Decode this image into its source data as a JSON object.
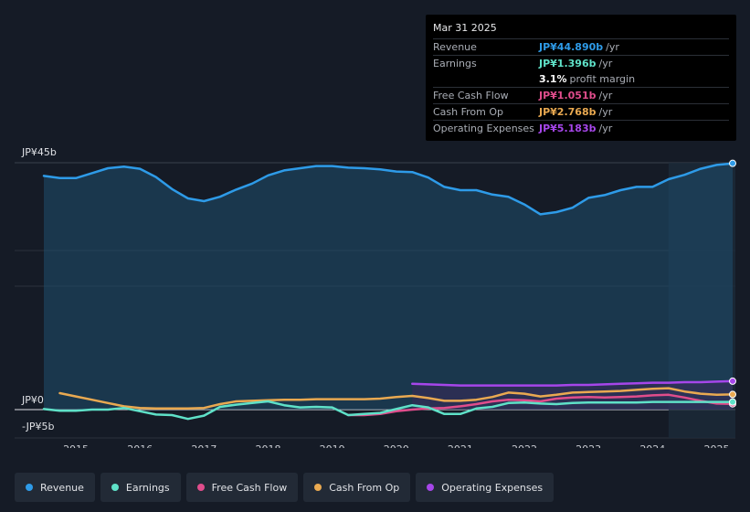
{
  "tooltip": {
    "date": "Mar 31 2025",
    "rows": [
      {
        "label": "Revenue",
        "value": "JP¥44.890b",
        "unit": "/yr",
        "color": "#2e9be8"
      },
      {
        "label": "Earnings",
        "value": "JP¥1.396b",
        "unit": "/yr",
        "color": "#5fe1c8"
      },
      {
        "label": "",
        "value": "3.1%",
        "unit": "profit margin",
        "color": "#ffffff"
      },
      {
        "label": "Free Cash Flow",
        "value": "JP¥1.051b",
        "unit": "/yr",
        "color": "#e04d8c"
      },
      {
        "label": "Cash From Op",
        "value": "JP¥2.768b",
        "unit": "/yr",
        "color": "#e9a951"
      },
      {
        "label": "Operating Expenses",
        "value": "JP¥5.183b",
        "unit": "/yr",
        "color": "#a646ea"
      }
    ]
  },
  "axis": {
    "y_top": "JP¥45b",
    "y_zero": "JP¥0",
    "y_bottom": "-JP¥5b"
  },
  "legend": [
    {
      "label": "Revenue",
      "color": "#2e9be8"
    },
    {
      "label": "Earnings",
      "color": "#5fe1c8"
    },
    {
      "label": "Free Cash Flow",
      "color": "#e04d8c"
    },
    {
      "label": "Cash From Op",
      "color": "#e9a951"
    },
    {
      "label": "Operating Expenses",
      "color": "#a646ea"
    }
  ],
  "chart_data": {
    "type": "line",
    "title": "",
    "xlabel": "",
    "ylabel": "",
    "ylim": [
      -5,
      45
    ],
    "x_ticks": [
      "2015",
      "2016",
      "2017",
      "2018",
      "2019",
      "2020",
      "2021",
      "2022",
      "2023",
      "2024",
      "2025"
    ],
    "series": [
      {
        "name": "Revenue",
        "color": "#2e9be8",
        "x": [
          2014.5,
          2014.75,
          2015.0,
          2015.25,
          2015.5,
          2015.75,
          2016.0,
          2016.25,
          2016.5,
          2016.75,
          2017.0,
          2017.25,
          2017.5,
          2017.75,
          2018.0,
          2018.25,
          2018.5,
          2018.75,
          2019.0,
          2019.25,
          2019.5,
          2019.75,
          2020.0,
          2020.25,
          2020.5,
          2020.75,
          2021.0,
          2021.25,
          2021.5,
          2021.75,
          2022.0,
          2022.25,
          2022.5,
          2022.75,
          2023.0,
          2023.25,
          2023.5,
          2023.75,
          2024.0,
          2024.25,
          2024.5,
          2024.75,
          2025.0,
          2025.25
        ],
        "values": [
          42.6,
          42.2,
          42.2,
          43.1,
          44.0,
          44.3,
          43.9,
          42.4,
          40.2,
          38.5,
          38.0,
          38.8,
          40.1,
          41.2,
          42.7,
          43.6,
          44.0,
          44.4,
          44.4,
          44.1,
          44.0,
          43.8,
          43.4,
          43.3,
          42.3,
          40.6,
          40.0,
          40.0,
          39.2,
          38.8,
          37.4,
          35.6,
          36.0,
          36.8,
          38.6,
          39.1,
          40.0,
          40.6,
          40.6,
          42.0,
          42.8,
          43.9,
          44.6,
          44.89
        ]
      },
      {
        "name": "Earnings",
        "color": "#5fe1c8",
        "x": [
          2014.5,
          2014.75,
          2015.0,
          2015.25,
          2015.5,
          2015.75,
          2016.0,
          2016.25,
          2016.5,
          2016.75,
          2017.0,
          2017.25,
          2017.5,
          2017.75,
          2018.0,
          2018.25,
          2018.5,
          2018.75,
          2019.0,
          2019.25,
          2019.5,
          2019.75,
          2020.0,
          2020.25,
          2020.5,
          2020.75,
          2021.0,
          2021.25,
          2021.5,
          2021.75,
          2022.0,
          2022.25,
          2022.5,
          2022.75,
          2023.0,
          2023.25,
          2023.5,
          2023.75,
          2024.0,
          2024.25,
          2024.5,
          2024.75,
          2025.0,
          2025.25
        ],
        "values": [
          0.1,
          -0.2,
          -0.2,
          0.0,
          0.0,
          0.3,
          -0.3,
          -0.9,
          -1.0,
          -1.7,
          -1.1,
          0.5,
          0.9,
          1.2,
          1.5,
          0.8,
          0.4,
          0.5,
          0.4,
          -1.0,
          -0.8,
          -0.6,
          0.1,
          0.8,
          0.4,
          -0.8,
          -0.8,
          0.2,
          0.5,
          1.2,
          1.3,
          1.1,
          1.0,
          1.2,
          1.3,
          1.3,
          1.3,
          1.3,
          1.4,
          1.4,
          1.4,
          1.4,
          1.4,
          1.396
        ]
      },
      {
        "name": "Free Cash Flow",
        "color": "#e04d8c",
        "x": [
          2019.25,
          2019.5,
          2019.75,
          2020.0,
          2020.25,
          2020.5,
          2020.75,
          2021.0,
          2021.25,
          2021.5,
          2021.75,
          2022.0,
          2022.25,
          2022.5,
          2022.75,
          2023.0,
          2023.25,
          2023.5,
          2023.75,
          2024.0,
          2024.25,
          2024.5,
          2024.75,
          2025.0,
          2025.25
        ],
        "values": [
          -1.0,
          -1.0,
          -0.8,
          -0.3,
          0.0,
          0.2,
          0.3,
          0.6,
          1.0,
          1.5,
          1.8,
          1.7,
          1.5,
          2.0,
          2.2,
          2.3,
          2.2,
          2.3,
          2.4,
          2.6,
          2.7,
          2.2,
          1.6,
          1.1,
          1.051
        ]
      },
      {
        "name": "Cash From Op",
        "color": "#e9a951",
        "x": [
          2014.75,
          2015.0,
          2015.25,
          2015.5,
          2015.75,
          2016.0,
          2016.25,
          2016.5,
          2016.75,
          2017.0,
          2017.25,
          2017.5,
          2017.75,
          2018.0,
          2018.25,
          2018.5,
          2018.75,
          2019.0,
          2019.25,
          2019.5,
          2019.75,
          2020.0,
          2020.25,
          2020.5,
          2020.75,
          2021.0,
          2021.25,
          2021.5,
          2021.75,
          2022.0,
          2022.25,
          2022.5,
          2022.75,
          2023.0,
          2023.25,
          2023.5,
          2023.75,
          2024.0,
          2024.25,
          2024.5,
          2024.75,
          2025.0,
          2025.25
        ],
        "values": [
          3.0,
          2.4,
          1.8,
          1.2,
          0.6,
          0.3,
          0.2,
          0.2,
          0.2,
          0.3,
          1.0,
          1.5,
          1.6,
          1.7,
          1.8,
          1.8,
          1.9,
          1.9,
          1.9,
          1.9,
          2.0,
          2.3,
          2.5,
          2.1,
          1.6,
          1.6,
          1.8,
          2.3,
          3.1,
          2.9,
          2.4,
          2.7,
          3.1,
          3.2,
          3.3,
          3.4,
          3.6,
          3.8,
          3.9,
          3.3,
          2.9,
          2.7,
          2.768
        ]
      },
      {
        "name": "Operating Expenses",
        "color": "#a646ea",
        "x": [
          2020.25,
          2020.5,
          2020.75,
          2021.0,
          2021.25,
          2021.5,
          2021.75,
          2022.0,
          2022.25,
          2022.5,
          2022.75,
          2023.0,
          2023.25,
          2023.5,
          2023.75,
          2024.0,
          2024.25,
          2024.5,
          2024.75,
          2025.0,
          2025.25
        ],
        "values": [
          4.7,
          4.6,
          4.5,
          4.4,
          4.4,
          4.4,
          4.4,
          4.4,
          4.4,
          4.4,
          4.5,
          4.5,
          4.6,
          4.7,
          4.8,
          4.9,
          4.9,
          5.0,
          5.0,
          5.1,
          5.183
        ]
      }
    ],
    "highlight_region": {
      "from": 2024.25,
      "to": 2025.25
    }
  }
}
